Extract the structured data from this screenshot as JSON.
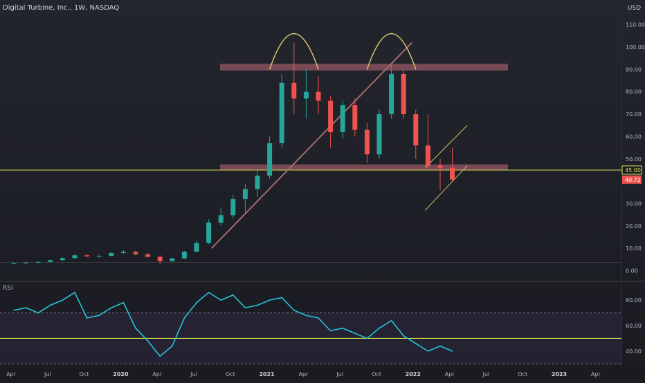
{
  "header": {
    "symbol_line": "Digital Turbine, Inc., 1W, NASDAQ",
    "currency": "USD"
  },
  "colors": {
    "background": "#1c1d24",
    "up": "#26a69a",
    "down": "#ef5350",
    "zone": "#c2697a",
    "arc": "#d6c56a",
    "channel": "#d6c56a",
    "trendline": "#a06c6c",
    "support_line": "#d4e157",
    "rsi_line": "#26c6da",
    "rsi_band": "#7e57c2",
    "label_support": "#d4e157",
    "label_last": "#ef5350"
  },
  "price_pane": {
    "y_ticks": [
      "0.00",
      "10.00",
      "20.00",
      "30.00",
      "40.00",
      "50.00",
      "60.00",
      "70.00",
      "80.00",
      "90.00",
      "100.00",
      "110.00"
    ],
    "ylim": [
      -2,
      113
    ],
    "support_label": "45.00",
    "last_label": "40.72",
    "support_value": 45.0,
    "last_value": 40.72
  },
  "rsi_pane": {
    "title": "RSI",
    "y_ticks": [
      "40.00",
      "60.00",
      "80.00"
    ],
    "ylim": [
      28,
      92
    ],
    "band_upper": 70,
    "band_lower": 30,
    "horizontal_line": 50
  },
  "time_axis": {
    "labels": [
      "Apr",
      "Jul",
      "Oct",
      "2020",
      "Apr",
      "Jul",
      "Oct",
      "2021",
      "Apr",
      "Jul",
      "Oct",
      "2022",
      "Apr",
      "Jul",
      "Oct",
      "2023",
      "Apr"
    ]
  },
  "chart_data": {
    "type": "candlestick",
    "interval": "1W",
    "symbol": "Digital Turbine, Inc.",
    "exchange": "NASDAQ",
    "price_series": [
      {
        "x": "2019-03",
        "open": 3.1,
        "high": 3.5,
        "low": 2.9,
        "close": 3.3
      },
      {
        "x": "2019-04",
        "open": 3.3,
        "high": 3.9,
        "low": 3.1,
        "close": 3.7
      },
      {
        "x": "2019-05",
        "open": 3.7,
        "high": 4.2,
        "low": 3.4,
        "close": 3.9
      },
      {
        "x": "2019-06",
        "open": 3.9,
        "high": 5.0,
        "low": 3.7,
        "close": 4.7
      },
      {
        "x": "2019-07",
        "open": 4.7,
        "high": 6.0,
        "low": 4.5,
        "close": 5.6
      },
      {
        "x": "2019-08",
        "open": 5.6,
        "high": 7.2,
        "low": 5.4,
        "close": 6.9
      },
      {
        "x": "2019-09",
        "open": 6.9,
        "high": 7.4,
        "low": 6.0,
        "close": 6.4
      },
      {
        "x": "2019-10",
        "open": 6.4,
        "high": 7.1,
        "low": 5.9,
        "close": 6.6
      },
      {
        "x": "2019-11",
        "open": 6.6,
        "high": 8.2,
        "low": 6.4,
        "close": 7.9
      },
      {
        "x": "2019-12",
        "open": 7.9,
        "high": 9.2,
        "low": 7.5,
        "close": 8.4
      },
      {
        "x": "2020-01",
        "open": 8.4,
        "high": 8.9,
        "low": 6.9,
        "close": 7.3
      },
      {
        "x": "2020-02",
        "open": 7.3,
        "high": 7.8,
        "low": 5.8,
        "close": 6.2
      },
      {
        "x": "2020-03",
        "open": 6.2,
        "high": 6.9,
        "low": 3.1,
        "close": 4.3
      },
      {
        "x": "2020-04",
        "open": 4.3,
        "high": 5.8,
        "low": 3.9,
        "close": 5.5
      },
      {
        "x": "2020-05",
        "open": 5.5,
        "high": 8.8,
        "low": 5.3,
        "close": 8.5
      },
      {
        "x": "2020-06",
        "open": 8.5,
        "high": 13.5,
        "low": 8.2,
        "close": 12.4
      },
      {
        "x": "2020-07",
        "open": 12.4,
        "high": 23.0,
        "low": 11.8,
        "close": 21.5
      },
      {
        "x": "2020-08",
        "open": 21.5,
        "high": 28.0,
        "low": 20.2,
        "close": 24.8
      },
      {
        "x": "2020-09",
        "open": 24.8,
        "high": 34.0,
        "low": 23.5,
        "close": 32.0
      },
      {
        "x": "2020-10",
        "open": 32.0,
        "high": 39.0,
        "low": 26.0,
        "close": 36.5
      },
      {
        "x": "2020-11",
        "open": 36.5,
        "high": 45.0,
        "low": 33.0,
        "close": 42.5
      },
      {
        "x": "2020-12",
        "open": 42.5,
        "high": 60.0,
        "low": 41.0,
        "close": 57.0
      },
      {
        "x": "2021-01",
        "open": 57.0,
        "high": 88.0,
        "low": 55.0,
        "close": 84.0
      },
      {
        "x": "2021-02",
        "open": 84.0,
        "high": 102.0,
        "low": 70.0,
        "close": 77.0
      },
      {
        "x": "2021-03",
        "open": 77.0,
        "high": 90.0,
        "low": 68.0,
        "close": 80.0
      },
      {
        "x": "2021-04",
        "open": 80.0,
        "high": 87.0,
        "low": 70.0,
        "close": 76.0
      },
      {
        "x": "2021-05",
        "open": 76.0,
        "high": 78.0,
        "low": 55.0,
        "close": 62.0
      },
      {
        "x": "2021-06",
        "open": 62.0,
        "high": 76.0,
        "low": 59.0,
        "close": 74.0
      },
      {
        "x": "2021-07",
        "open": 74.0,
        "high": 77.0,
        "low": 60.0,
        "close": 63.0
      },
      {
        "x": "2021-08",
        "open": 63.0,
        "high": 66.0,
        "low": 48.0,
        "close": 52.0
      },
      {
        "x": "2021-09",
        "open": 52.0,
        "high": 72.0,
        "low": 50.0,
        "close": 70.0
      },
      {
        "x": "2021-10",
        "open": 70.0,
        "high": 92.0,
        "low": 68.0,
        "close": 88.0
      },
      {
        "x": "2021-11",
        "open": 88.0,
        "high": 90.0,
        "low": 68.0,
        "close": 70.0
      },
      {
        "x": "2021-12",
        "open": 70.0,
        "high": 72.0,
        "low": 50.0,
        "close": 56.0
      },
      {
        "x": "2022-01",
        "open": 56.0,
        "high": 70.0,
        "low": 45.0,
        "close": 47.0
      },
      {
        "x": "2022-02",
        "open": 47.0,
        "high": 50.0,
        "low": 36.0,
        "close": 46.0
      },
      {
        "x": "2022-03",
        "open": 46.0,
        "high": 55.0,
        "low": 40.0,
        "close": 40.72
      }
    ],
    "rsi_series": [
      {
        "x": "2019-03",
        "y": 72
      },
      {
        "x": "2019-04",
        "y": 74
      },
      {
        "x": "2019-05",
        "y": 70
      },
      {
        "x": "2019-06",
        "y": 76
      },
      {
        "x": "2019-07",
        "y": 80
      },
      {
        "x": "2019-08",
        "y": 86
      },
      {
        "x": "2019-09",
        "y": 66
      },
      {
        "x": "2019-10",
        "y": 68
      },
      {
        "x": "2019-11",
        "y": 74
      },
      {
        "x": "2019-12",
        "y": 78
      },
      {
        "x": "2020-01",
        "y": 58
      },
      {
        "x": "2020-02",
        "y": 48
      },
      {
        "x": "2020-03",
        "y": 36
      },
      {
        "x": "2020-04",
        "y": 44
      },
      {
        "x": "2020-05",
        "y": 66
      },
      {
        "x": "2020-06",
        "y": 78
      },
      {
        "x": "2020-07",
        "y": 86
      },
      {
        "x": "2020-08",
        "y": 80
      },
      {
        "x": "2020-09",
        "y": 84
      },
      {
        "x": "2020-10",
        "y": 74
      },
      {
        "x": "2020-11",
        "y": 76
      },
      {
        "x": "2020-12",
        "y": 80
      },
      {
        "x": "2021-01",
        "y": 82
      },
      {
        "x": "2021-02",
        "y": 72
      },
      {
        "x": "2021-03",
        "y": 68
      },
      {
        "x": "2021-04",
        "y": 66
      },
      {
        "x": "2021-05",
        "y": 56
      },
      {
        "x": "2021-06",
        "y": 58
      },
      {
        "x": "2021-07",
        "y": 54
      },
      {
        "x": "2021-08",
        "y": 50
      },
      {
        "x": "2021-09",
        "y": 58
      },
      {
        "x": "2021-10",
        "y": 64
      },
      {
        "x": "2021-11",
        "y": 52
      },
      {
        "x": "2021-12",
        "y": 46
      },
      {
        "x": "2022-01",
        "y": 40
      },
      {
        "x": "2022-02",
        "y": 44
      },
      {
        "x": "2022-03",
        "y": 40
      }
    ],
    "annotations": {
      "resistance_zone": [
        89.5,
        92.5
      ],
      "support_zone": [
        45.0,
        47.5
      ],
      "support_line": 45.0,
      "rising_trendline": [
        {
          "x": "2020-07",
          "y": 10
        },
        {
          "x": "2021-11",
          "y": 102
        }
      ],
      "double_top_arcs": [
        {
          "from": "2020-12",
          "to": "2021-04",
          "level": 90,
          "peak": 106
        },
        {
          "from": "2021-08",
          "to": "2021-12",
          "level": 90,
          "peak": 106
        }
      ],
      "channel_upper": [
        {
          "x": "2022-01",
          "y": 46
        },
        {
          "x": "2022-04",
          "y": 65
        }
      ],
      "channel_lower": [
        {
          "x": "2022-01",
          "y": 27
        },
        {
          "x": "2022-04",
          "y": 47
        }
      ]
    },
    "ylim": [
      -2,
      113
    ],
    "grid": false,
    "legend": "none"
  }
}
